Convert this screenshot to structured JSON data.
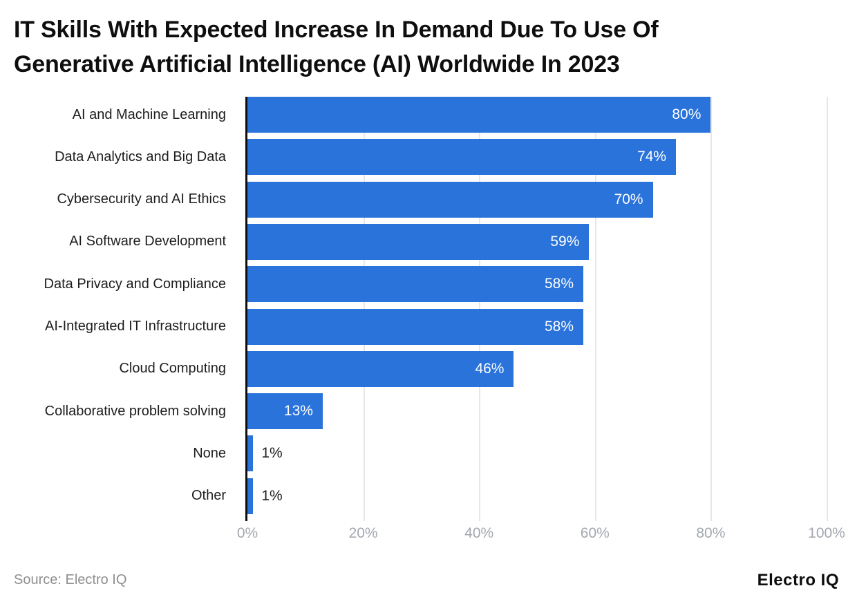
{
  "header": {
    "title_lines": [
      "IT Skills With Expected Increase In Demand Due To Use Of",
      "Generative Artificial Intelligence (AI) Worldwide In 2023"
    ]
  },
  "footer": {
    "source": "Source: Electro IQ",
    "brand": "Electro IQ"
  },
  "colors": {
    "bar": "#2a73db",
    "axis_line": "#0d0d0d",
    "gridline": "#e7e7e7",
    "tick_label": "#a2a8af",
    "category_label": "#1d1d1d",
    "value_label_inside": "#ffffff",
    "value_label_outside": "#1d1d1d",
    "source_text": "#8f8f8f",
    "background": "#ffffff"
  },
  "chart_data": {
    "type": "bar",
    "orientation": "horizontal",
    "title": "IT Skills With Expected Increase In Demand Due To Use Of Generative Artificial Intelligence (AI) Worldwide In 2023",
    "categories": [
      "AI and Machine Learning",
      "Data Analytics and Big Data",
      "Cybersecurity and AI Ethics",
      "AI Software Development",
      "Data Privacy and Compliance",
      "AI-Integrated IT Infrastructure",
      "Cloud Computing",
      "Collaborative problem solving",
      "None",
      "Other"
    ],
    "values": [
      80,
      74,
      70,
      59,
      58,
      58,
      46,
      13,
      1,
      1
    ],
    "value_labels": [
      "80%",
      "74%",
      "70%",
      "59%",
      "58%",
      "58%",
      "46%",
      "13%",
      "1%",
      "1%"
    ],
    "xlabel": "",
    "ylabel": "",
    "xlim": [
      0,
      100
    ],
    "x_tick_values": [
      0,
      20,
      40,
      60,
      80,
      100
    ],
    "x_tick_labels": [
      "0%",
      "20%",
      "40%",
      "60%",
      "80%",
      "100%"
    ],
    "grid": "vertical",
    "legend": "none"
  }
}
